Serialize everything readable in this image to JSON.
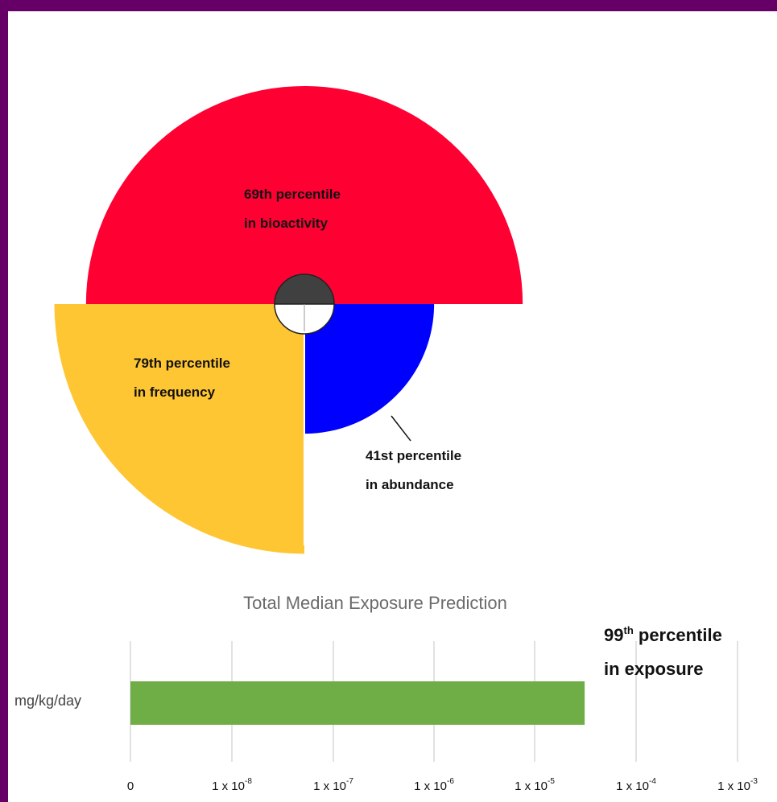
{
  "colors": {
    "frame": "#660066",
    "bioactivity": "#ff0033",
    "frequency": "#ffc634",
    "abundance": "#0000ff",
    "exposure_bar": "#6fad46",
    "hub_top": "#404040",
    "hub_bottom": "#ffffff"
  },
  "chart_data": [
    {
      "type": "pie",
      "slices": [
        {
          "metric": "bioactivity",
          "percentile": 69,
          "label_line1": "69th percentile",
          "label_line2": "in bioactivity"
        },
        {
          "metric": "frequency",
          "percentile": 79,
          "label_line1": "79th percentile",
          "label_line2": "in frequency"
        },
        {
          "metric": "abundance",
          "percentile": 41,
          "label_line1": "41st percentile",
          "label_line2": "in abundance"
        }
      ]
    },
    {
      "type": "bar",
      "orientation": "horizontal",
      "title": "Total Median Exposure Prediction",
      "categories": [
        "mg/kg/day"
      ],
      "values": [
        3e-05
      ],
      "xscale": "log",
      "tick_labels": [
        {
          "base": "0",
          "exp": ""
        },
        {
          "base": "1 x 10",
          "exp": "-8"
        },
        {
          "base": "1 x 10",
          "exp": "-7"
        },
        {
          "base": "1 x 10",
          "exp": "-6"
        },
        {
          "base": "1 x 10",
          "exp": "-5"
        },
        {
          "base": "1 x 10",
          "exp": "-4"
        },
        {
          "base": "1 x 10",
          "exp": "-3"
        }
      ],
      "annotation": {
        "number": "99",
        "suffix": "th",
        "rest": " percentile",
        "line2": "in exposure"
      }
    }
  ]
}
